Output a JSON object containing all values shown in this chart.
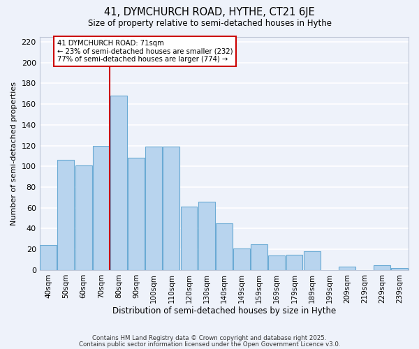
{
  "title": "41, DYMCHURCH ROAD, HYTHE, CT21 6JE",
  "subtitle": "Size of property relative to semi-detached houses in Hythe",
  "xlabel": "Distribution of semi-detached houses by size in Hythe",
  "ylabel": "Number of semi-detached properties",
  "categories": [
    "40sqm",
    "50sqm",
    "60sqm",
    "70sqm",
    "80sqm",
    "90sqm",
    "100sqm",
    "110sqm",
    "120sqm",
    "130sqm",
    "140sqm",
    "149sqm",
    "159sqm",
    "169sqm",
    "179sqm",
    "189sqm",
    "199sqm",
    "209sqm",
    "219sqm",
    "229sqm",
    "239sqm"
  ],
  "values": [
    24,
    106,
    101,
    120,
    168,
    108,
    119,
    119,
    61,
    66,
    45,
    21,
    25,
    14,
    15,
    18,
    0,
    3,
    0,
    5,
    2
  ],
  "bar_color": "#b8d4ee",
  "bar_edge_color": "#6aaad4",
  "marker_line_color": "#cc0000",
  "annotation_title": "41 DYMCHURCH ROAD: 71sqm",
  "annotation_line1": "← 23% of semi-detached houses are smaller (232)",
  "annotation_line2": "77% of semi-detached houses are larger (774) →",
  "annotation_box_color": "#ffffff",
  "annotation_box_edge": "#cc0000",
  "ylim": [
    0,
    225
  ],
  "yticks": [
    0,
    20,
    40,
    60,
    80,
    100,
    120,
    140,
    160,
    180,
    200,
    220
  ],
  "footer1": "Contains HM Land Registry data © Crown copyright and database right 2025.",
  "footer2": "Contains public sector information licensed under the Open Government Licence v3.0.",
  "bg_color": "#eef2fa",
  "grid_color": "#ffffff"
}
